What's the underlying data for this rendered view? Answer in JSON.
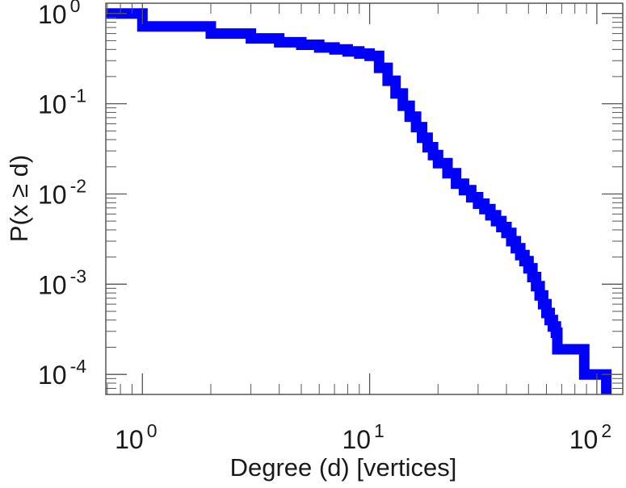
{
  "chart_data": {
    "type": "line",
    "title": "",
    "xlabel": "Degree (d) [vertices]",
    "ylabel": "P(x ≥ d)",
    "x_scale": "log",
    "y_scale": "log",
    "xlim": [
      0.69,
      130
    ],
    "ylim": [
      6e-05,
      1.3
    ],
    "x_tick_labels": [
      {
        "value": 1,
        "base": "10",
        "exponent": "0"
      },
      {
        "value": 10,
        "base": "10",
        "exponent": "1"
      },
      {
        "value": 100,
        "base": "10",
        "exponent": "2"
      }
    ],
    "y_tick_labels": [
      {
        "value": 1,
        "base": "10",
        "exponent": "0"
      },
      {
        "value": 0.1,
        "base": "10",
        "exponent": "-1"
      },
      {
        "value": 0.01,
        "base": "10",
        "exponent": "-2"
      },
      {
        "value": 0.001,
        "base": "10",
        "exponent": "-3"
      },
      {
        "value": 0.0001,
        "base": "10",
        "exponent": "-4"
      }
    ],
    "grid": false,
    "legend": "none",
    "series": [
      {
        "color": "#0000ff",
        "step": true,
        "x": [
          0.69,
          1,
          2,
          3,
          4,
          5,
          6,
          7,
          8,
          9,
          10,
          11,
          12,
          13,
          14,
          15,
          16,
          17,
          18,
          19,
          20,
          22,
          24,
          26,
          28,
          30,
          32,
          34,
          36,
          38,
          40,
          42,
          44,
          46,
          48,
          50,
          52,
          54,
          56,
          58,
          60,
          62,
          64,
          66,
          67,
          88,
          110
        ],
        "y": [
          1.0,
          0.72,
          0.6,
          0.53,
          0.48,
          0.45,
          0.42,
          0.4,
          0.38,
          0.36,
          0.34,
          0.25,
          0.18,
          0.13,
          0.095,
          0.072,
          0.055,
          0.042,
          0.033,
          0.027,
          0.022,
          0.017,
          0.013,
          0.011,
          0.0092,
          0.0078,
          0.0068,
          0.0058,
          0.005,
          0.0043,
          0.0037,
          0.003,
          0.0025,
          0.0021,
          0.0018,
          0.0015,
          0.0012,
          0.00095,
          0.00075,
          0.0006,
          0.00048,
          0.0004,
          0.00034,
          0.00029,
          0.00019,
          0.0001,
          6e-05
        ]
      }
    ]
  }
}
